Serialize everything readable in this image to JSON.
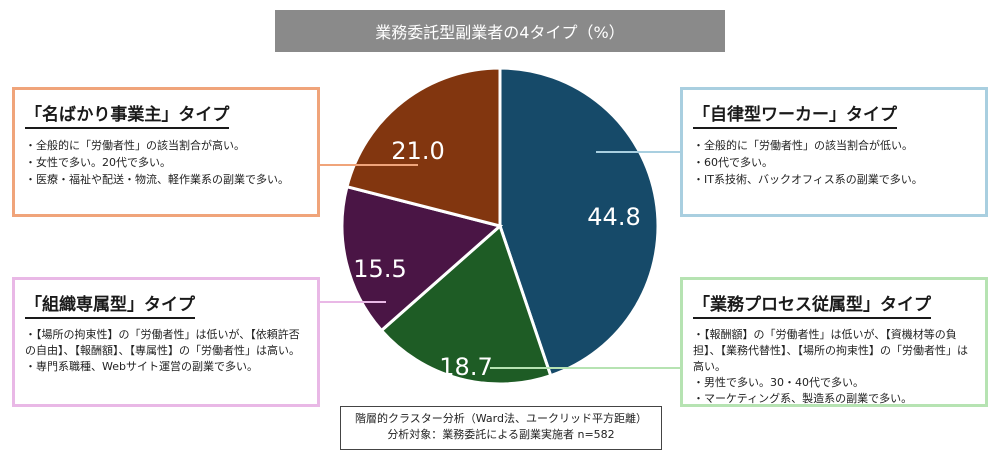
{
  "title": "業務委託型副業者の4タイプ（%）",
  "chart_data": {
    "type": "pie",
    "slices": [
      {
        "label": "「自律型ワーカー」タイプ",
        "value": 44.8,
        "value_label": "44.8",
        "color": "#164a69"
      },
      {
        "label": "「業務プロセス従属型」タイプ",
        "value": 18.7,
        "value_label": "18.7",
        "color": "#1e5c25"
      },
      {
        "label": "「組織専属型」タイプ",
        "value": 15.5,
        "value_label": "15.5",
        "color": "#4a1545"
      },
      {
        "label": "「名ばかり事業主」タイプ",
        "value": 21.0,
        "value_label": "21.0",
        "color": "#82360f"
      }
    ],
    "start": "12 o'clock",
    "direction": "clockwise"
  },
  "boxes": {
    "nabakari": {
      "heading": "「名ばかり事業主」タイプ",
      "items": [
        "・全般的に「労働者性」の該当割合が高い。",
        "・女性で多い。20代で多い。",
        "・医療・福祉や配送・物流、軽作業系の副業で多い。"
      ]
    },
    "jiritsu": {
      "heading": "「自律型ワーカー」タイプ",
      "items": [
        "・全般的に「労働者性」の該当割合が低い。",
        "・60代で多い。",
        "・IT系技術、バックオフィス系の副業で多い。"
      ]
    },
    "soshiki": {
      "heading": "「組織専属型」タイプ",
      "items": [
        "・【場所の拘束性】の「労働者性」は低いが、【依頼許否の自由】、【報酬額】、【専属性】の「労働者性」は高い。",
        "・専門系職種、Webサイト運営の副業で多い。"
      ]
    },
    "gyomu": {
      "heading": "「業務プロセス従属型」タイプ",
      "items": [
        "・【報酬額】の「労働者性」は低いが、【資機材等の負担】、【業務代替性】、【場所の拘束性】の「労働者性」は高い。",
        "・男性で多い。30・40代で多い。",
        "・マーケティング系、製造系の副業で多い。"
      ]
    }
  },
  "note": {
    "line1": "階層的クラスター分析（Ward法、ユークリッド平方距離）",
    "line2": "分析対象：業務委託による副業実施者 n=582"
  }
}
